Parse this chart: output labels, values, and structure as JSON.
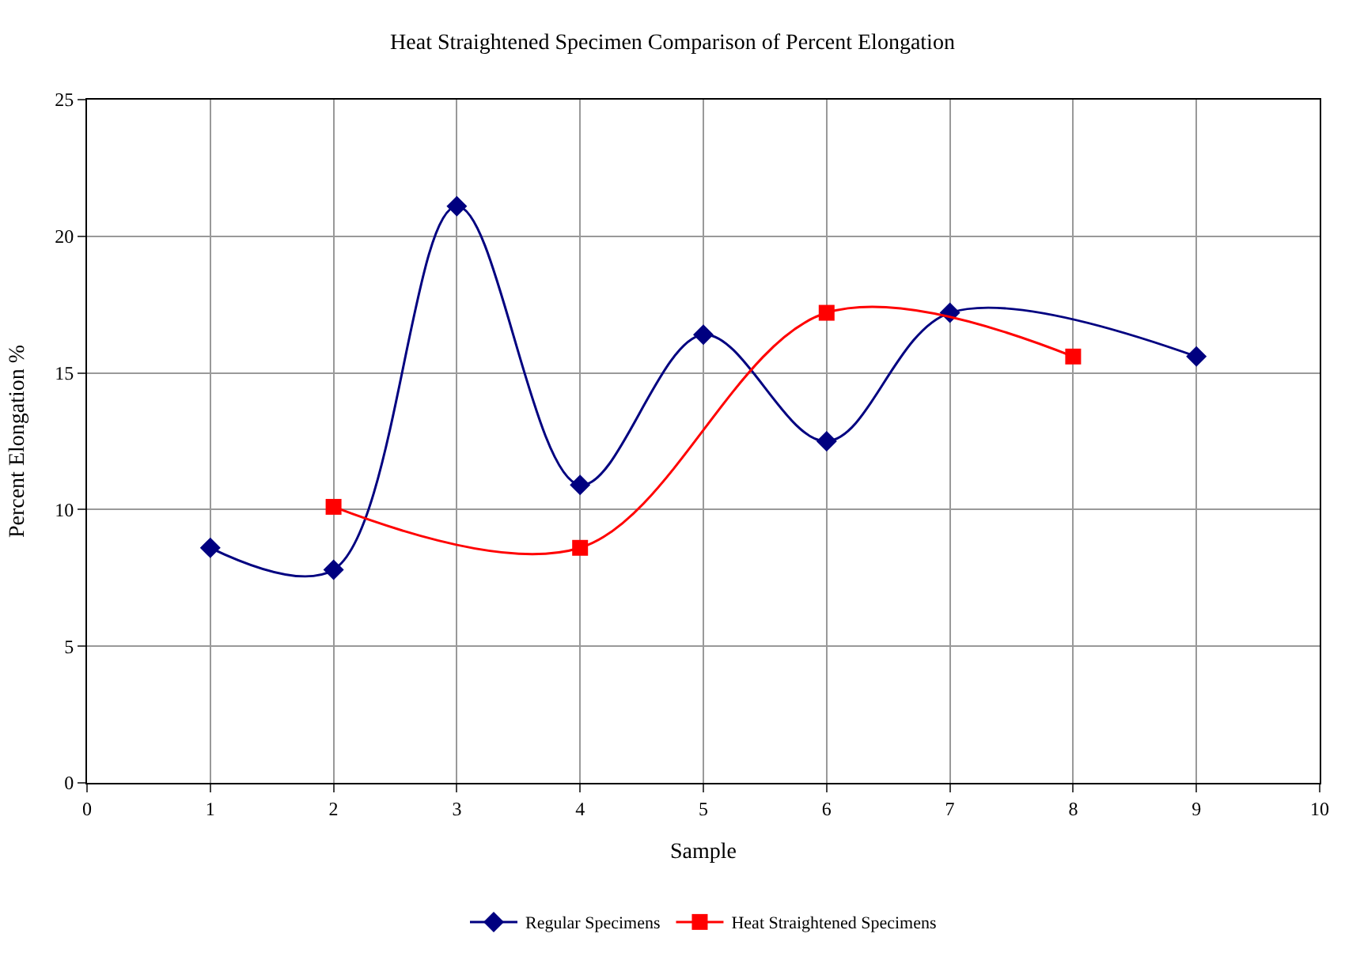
{
  "chart_data": {
    "type": "line",
    "title": "Heat Straightened Specimen Comparison of Percent Elongation",
    "xlabel": "Sample",
    "ylabel": "Percent Elongation %",
    "xlim": [
      0,
      10
    ],
    "xticks": [
      0,
      1,
      2,
      3,
      4,
      5,
      6,
      7,
      8,
      9,
      10
    ],
    "ylim": [
      0,
      25
    ],
    "yticks": [
      0,
      5,
      10,
      15,
      20,
      25
    ],
    "grid": true,
    "legend": "bottom",
    "series": [
      {
        "name": "Regular Specimens",
        "color": "#000080",
        "marker": "diamond",
        "x": [
          1,
          2,
          3,
          4,
          5,
          6,
          7,
          9
        ],
        "values": [
          8.6,
          7.8,
          21.1,
          10.9,
          16.4,
          12.5,
          17.2,
          15.6
        ]
      },
      {
        "name": "Heat Straightened Specimens",
        "color": "#ff0000",
        "marker": "square",
        "x": [
          2,
          4,
          6,
          8
        ],
        "values": [
          10.1,
          8.6,
          17.2,
          15.6
        ]
      }
    ]
  }
}
